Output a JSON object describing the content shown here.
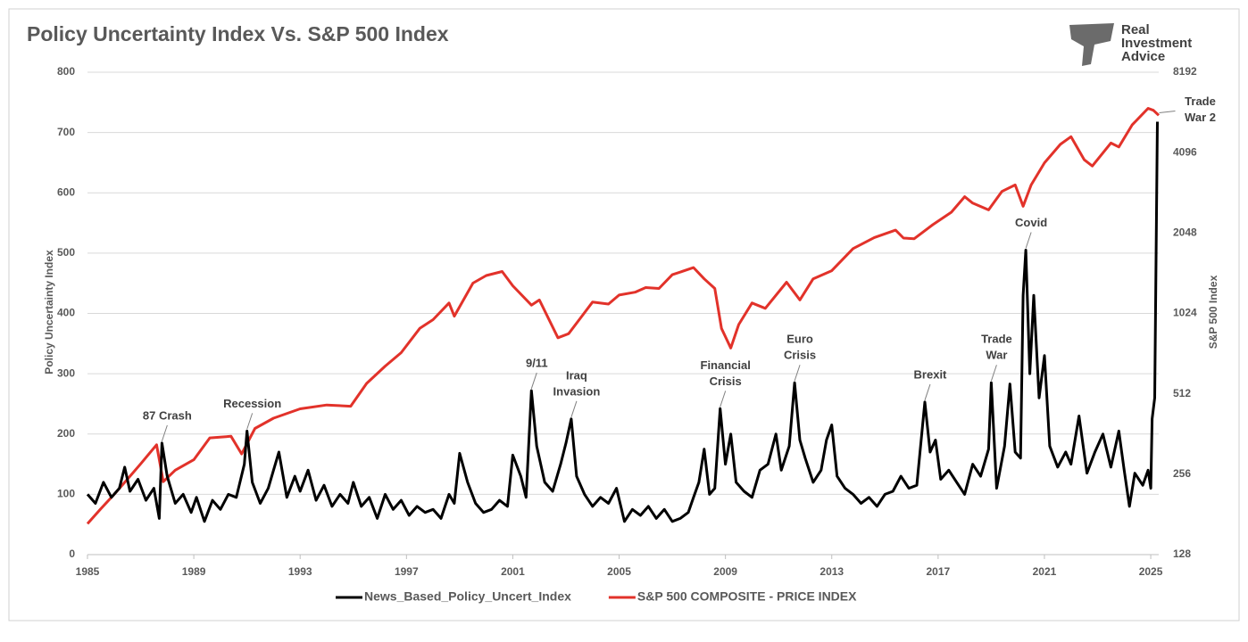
{
  "chart_data": {
    "type": "line",
    "title": "Policy Uncertainty Index Vs. S&P 500 Index",
    "logo": [
      "Real",
      "Investment",
      "Advice"
    ],
    "y_label": "Policy Uncertainty Index",
    "y2_label": "S&P 500 Index",
    "xlim": [
      1985,
      2025.3
    ],
    "xticks": [
      1985,
      1989,
      1993,
      1997,
      2001,
      2005,
      2009,
      2013,
      2017,
      2021,
      2025
    ],
    "ylim": [
      0,
      800
    ],
    "yticks": [
      0,
      100,
      200,
      300,
      400,
      500,
      600,
      700,
      800
    ],
    "y2lim": [
      128,
      8192
    ],
    "y2ticks": [
      128,
      256,
      512,
      1024,
      2048,
      4096,
      8192
    ],
    "y2log": true,
    "grid": true,
    "legend": "bottom",
    "series": [
      {
        "name": "News_Based_Policy_Uncert_Index",
        "color": "#000000",
        "x": [
          1985.0,
          1985.3,
          1985.6,
          1985.9,
          1986.2,
          1986.4,
          1986.6,
          1986.9,
          1987.2,
          1987.5,
          1987.7,
          1987.8,
          1988.0,
          1988.3,
          1988.6,
          1988.9,
          1989.1,
          1989.4,
          1989.7,
          1990.0,
          1990.3,
          1990.6,
          1990.9,
          1991.0,
          1991.2,
          1991.5,
          1991.8,
          1992.0,
          1992.2,
          1992.5,
          1992.8,
          1993.0,
          1993.3,
          1993.6,
          1993.9,
          1994.2,
          1994.5,
          1994.8,
          1995.0,
          1995.3,
          1995.6,
          1995.9,
          1996.2,
          1996.5,
          1996.8,
          1997.1,
          1997.4,
          1997.7,
          1998.0,
          1998.3,
          1998.6,
          1998.8,
          1999.0,
          1999.3,
          1999.6,
          1999.9,
          2000.2,
          2000.5,
          2000.8,
          2001.0,
          2001.3,
          2001.5,
          2001.7,
          2001.9,
          2002.2,
          2002.5,
          2002.8,
          2003.0,
          2003.2,
          2003.4,
          2003.7,
          2004.0,
          2004.3,
          2004.6,
          2004.9,
          2005.2,
          2005.5,
          2005.8,
          2006.1,
          2006.4,
          2006.7,
          2007.0,
          2007.3,
          2007.6,
          2007.8,
          2008.0,
          2008.2,
          2008.4,
          2008.6,
          2008.8,
          2009.0,
          2009.2,
          2009.4,
          2009.7,
          2010.0,
          2010.3,
          2010.6,
          2010.9,
          2011.1,
          2011.4,
          2011.6,
          2011.8,
          2012.0,
          2012.3,
          2012.6,
          2012.8,
          2013.0,
          2013.2,
          2013.5,
          2013.8,
          2014.1,
          2014.4,
          2014.7,
          2015.0,
          2015.3,
          2015.6,
          2015.9,
          2016.2,
          2016.5,
          2016.7,
          2016.9,
          2017.1,
          2017.4,
          2017.7,
          2018.0,
          2018.3,
          2018.6,
          2018.9,
          2019.0,
          2019.2,
          2019.5,
          2019.7,
          2019.9,
          2020.1,
          2020.2,
          2020.3,
          2020.45,
          2020.6,
          2020.8,
          2021.0,
          2021.2,
          2021.5,
          2021.8,
          2022.0,
          2022.3,
          2022.6,
          2022.9,
          2023.2,
          2023.5,
          2023.8,
          2024.0,
          2024.2,
          2024.4,
          2024.7,
          2024.9,
          2025.0,
          2025.05,
          2025.15,
          2025.25
        ],
        "values": [
          100,
          85,
          120,
          95,
          110,
          145,
          105,
          125,
          90,
          110,
          60,
          185,
          130,
          85,
          100,
          70,
          95,
          55,
          90,
          75,
          100,
          95,
          150,
          205,
          120,
          85,
          110,
          140,
          170,
          95,
          130,
          105,
          140,
          90,
          115,
          80,
          100,
          85,
          120,
          80,
          95,
          60,
          100,
          75,
          90,
          65,
          80,
          70,
          75,
          60,
          100,
          85,
          168,
          120,
          85,
          70,
          75,
          90,
          80,
          165,
          130,
          95,
          272,
          180,
          120,
          105,
          150,
          185,
          225,
          130,
          100,
          80,
          95,
          85,
          110,
          55,
          75,
          65,
          80,
          60,
          75,
          55,
          60,
          70,
          95,
          120,
          175,
          100,
          110,
          242,
          150,
          200,
          120,
          105,
          95,
          140,
          150,
          200,
          140,
          180,
          285,
          190,
          160,
          120,
          140,
          190,
          215,
          130,
          110,
          100,
          85,
          95,
          80,
          100,
          105,
          130,
          110,
          115,
          253,
          170,
          190,
          125,
          140,
          120,
          100,
          150,
          130,
          175,
          285,
          110,
          180,
          283,
          170,
          160,
          430,
          505,
          300,
          430,
          260,
          330,
          180,
          145,
          170,
          150,
          230,
          135,
          170,
          200,
          145,
          205,
          140,
          80,
          135,
          115,
          140,
          110,
          225,
          260,
          718
        ]
      },
      {
        "name": "S&P 500 COMPOSITE - PRICE INDEX",
        "color": "#e2322a",
        "axis": "y2",
        "x": [
          1985.0,
          1985.5,
          1986.0,
          1986.5,
          1987.0,
          1987.6,
          1987.85,
          1988.3,
          1989.0,
          1989.6,
          1990.4,
          1990.8,
          1991.3,
          1992.0,
          1993.0,
          1994.0,
          1994.9,
          1995.5,
          1996.2,
          1996.8,
          1997.5,
          1998.0,
          1998.6,
          1998.8,
          1999.5,
          2000.0,
          2000.6,
          2001.0,
          2001.7,
          2002.0,
          2002.7,
          2003.1,
          2003.6,
          2004.0,
          2004.6,
          2005.0,
          2005.6,
          2006.0,
          2006.5,
          2007.0,
          2007.8,
          2008.2,
          2008.6,
          2008.85,
          2009.2,
          2009.5,
          2010.0,
          2010.5,
          2011.3,
          2011.8,
          2012.3,
          2013.0,
          2013.8,
          2014.6,
          2015.4,
          2015.7,
          2016.1,
          2016.8,
          2017.5,
          2018.0,
          2018.3,
          2018.9,
          2019.4,
          2019.9,
          2020.2,
          2020.5,
          2021.0,
          2021.6,
          2022.0,
          2022.5,
          2022.8,
          2023.5,
          2023.8,
          2024.3,
          2024.9,
          2025.1,
          2025.3
        ],
        "values": [
          167,
          190,
          215,
          245,
          280,
          330,
          240,
          265,
          290,
          350,
          355,
          305,
          380,
          415,
          450,
          465,
          460,
          560,
          650,
          730,
          900,
          970,
          1120,
          1000,
          1330,
          1420,
          1470,
          1300,
          1100,
          1150,
          830,
          860,
          1000,
          1130,
          1110,
          1200,
          1230,
          1280,
          1270,
          1430,
          1520,
          1380,
          1270,
          900,
          760,
          930,
          1120,
          1070,
          1340,
          1150,
          1380,
          1480,
          1790,
          1970,
          2100,
          1960,
          1950,
          2200,
          2450,
          2800,
          2650,
          2500,
          2930,
          3100,
          2580,
          3100,
          3750,
          4400,
          4700,
          3850,
          3650,
          4450,
          4300,
          5200,
          6000,
          5900,
          5650
        ]
      }
    ],
    "annotations": [
      {
        "text": [
          "87 Crash"
        ],
        "x": 1987.8,
        "y": 185
      },
      {
        "text": [
          "Recession"
        ],
        "x": 1991.0,
        "y": 205
      },
      {
        "text": [
          "9/11"
        ],
        "x": 2001.7,
        "y": 272
      },
      {
        "text": [
          "Iraq",
          "Invasion"
        ],
        "x": 2003.2,
        "y": 225
      },
      {
        "text": [
          "Financial",
          "Crisis"
        ],
        "x": 2008.8,
        "y": 242
      },
      {
        "text": [
          "Euro",
          "Crisis"
        ],
        "x": 2011.6,
        "y": 285
      },
      {
        "text": [
          "Brexit"
        ],
        "x": 2016.5,
        "y": 253
      },
      {
        "text": [
          "Trade",
          "War"
        ],
        "x": 2019.0,
        "y": 285
      },
      {
        "text": [
          "Covid"
        ],
        "x": 2020.3,
        "y": 505
      },
      {
        "text": [
          "Trade",
          "War 2"
        ],
        "x": 2025.25,
        "y": 718
      }
    ]
  }
}
